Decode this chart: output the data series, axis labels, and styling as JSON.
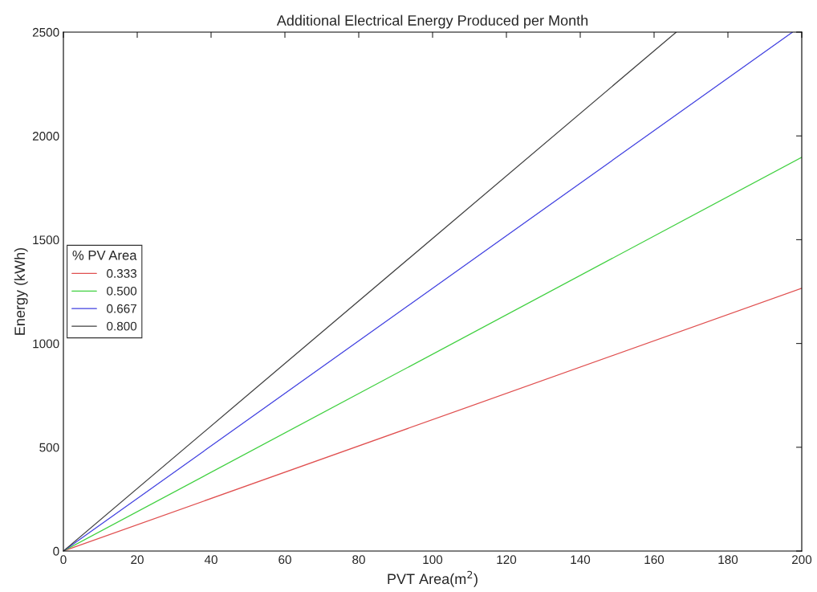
{
  "chart_data": {
    "type": "line",
    "title": "Additional Electrical Energy Produced per Month",
    "xlabel": "PVT Area(m$^{2}$)",
    "ylabel": "Energy (kWh)",
    "legend_title": "% PV Area",
    "series": [
      {
        "name": "0.333",
        "color": "#e05050",
        "x": [
          0,
          200
        ],
        "values": [
          0,
          1266
        ]
      },
      {
        "name": "0.500",
        "color": "#40d040",
        "x": [
          0,
          200
        ],
        "values": [
          0,
          1897
        ]
      },
      {
        "name": "0.667",
        "color": "#4040e0",
        "x": [
          0,
          197.5
        ],
        "values": [
          0,
          2500
        ]
      },
      {
        "name": "0.800",
        "color": "#404040",
        "x": [
          0,
          166
        ],
        "values": [
          0,
          2500
        ]
      }
    ],
    "xlim": [
      0,
      200
    ],
    "xticks": [
      0,
      20,
      40,
      60,
      80,
      100,
      120,
      140,
      160,
      180,
      200
    ],
    "ylim": [
      0,
      2500
    ],
    "yticks": [
      0,
      500,
      1000,
      1500,
      2000,
      2500
    ],
    "grid": false,
    "legend": "left",
    "marker": "none",
    "line_style": "solid"
  }
}
